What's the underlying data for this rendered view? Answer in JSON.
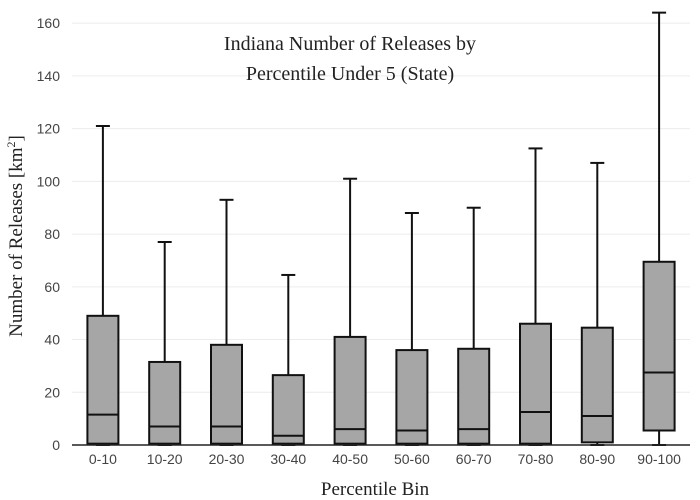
{
  "chart_data": {
    "type": "box",
    "title_line1": "Indiana Number of Releases by",
    "title_line2": "Percentile Under 5 (State)",
    "xlabel": "Percentile Bin",
    "ylabel_main": "Number of Releases  [km",
    "ylabel_sup": "2",
    "ylabel_close": "]",
    "ylim": [
      0,
      165
    ],
    "yticks": [
      0,
      20,
      40,
      60,
      80,
      100,
      120,
      140,
      160
    ],
    "grid": true,
    "categories": [
      "0-10",
      "10-20",
      "20-30",
      "30-40",
      "40-50",
      "50-60",
      "60-70",
      "70-80",
      "80-90",
      "90-100"
    ],
    "boxes": [
      {
        "min": 0,
        "q1": 0.5,
        "median": 11.5,
        "q3": 49,
        "max": 121
      },
      {
        "min": 0,
        "q1": 0.5,
        "median": 7,
        "q3": 31.5,
        "max": 77
      },
      {
        "min": 0,
        "q1": 0.5,
        "median": 7,
        "q3": 38,
        "max": 93
      },
      {
        "min": 0,
        "q1": 0.5,
        "median": 3.5,
        "q3": 26.5,
        "max": 64.5
      },
      {
        "min": 0,
        "q1": 0.5,
        "median": 6,
        "q3": 41,
        "max": 101
      },
      {
        "min": 0,
        "q1": 0.5,
        "median": 5.5,
        "q3": 36,
        "max": 88
      },
      {
        "min": 0,
        "q1": 0.5,
        "median": 6,
        "q3": 36.5,
        "max": 90
      },
      {
        "min": 0,
        "q1": 0.5,
        "median": 12.5,
        "q3": 46,
        "max": 112.5
      },
      {
        "min": 0,
        "q1": 1,
        "median": 11,
        "q3": 44.5,
        "max": 107
      },
      {
        "min": 0,
        "q1": 5.5,
        "median": 27.5,
        "q3": 69.5,
        "max": 164
      }
    ],
    "colors": {
      "box_fill": "#a6a6a6",
      "stroke": "#111111",
      "grid": "#ececec"
    }
  }
}
